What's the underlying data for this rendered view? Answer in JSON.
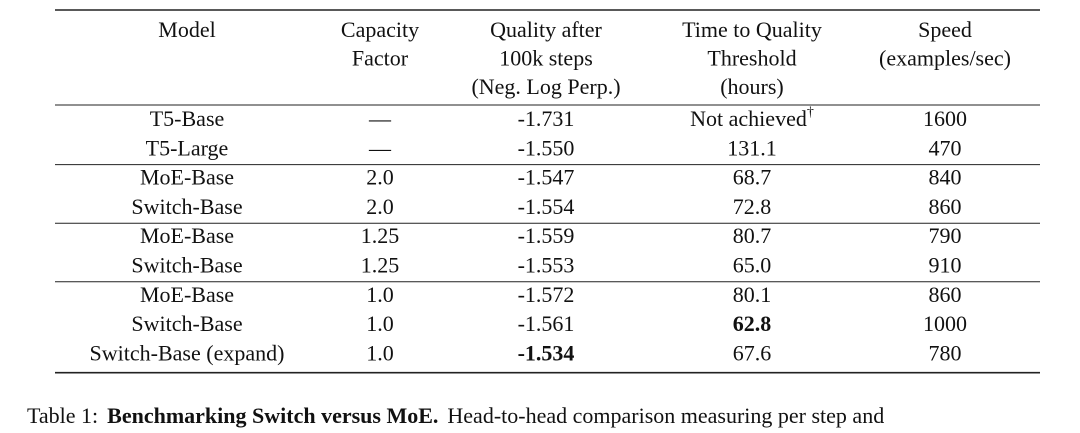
{
  "table": {
    "header": [
      [
        "Model"
      ],
      [
        "Capacity",
        "Factor"
      ],
      [
        "Quality after",
        "100k steps",
        "(Neg. Log Perp.)"
      ],
      [
        "Time to Quality",
        "Threshold",
        "(hours)"
      ],
      [
        "Speed",
        "(examples/sec)"
      ]
    ],
    "groups": [
      {
        "rows": [
          [
            {
              "text": "T5-Base"
            },
            {
              "text": "—"
            },
            {
              "text": "-1.731"
            },
            {
              "text": "Not achieved",
              "sup": "†"
            },
            {
              "text": "1600"
            }
          ],
          [
            {
              "text": "T5-Large"
            },
            {
              "text": "—"
            },
            {
              "text": "-1.550"
            },
            {
              "text": "131.1"
            },
            {
              "text": "470"
            }
          ]
        ]
      },
      {
        "rows": [
          [
            {
              "text": "MoE-Base"
            },
            {
              "text": "2.0"
            },
            {
              "text": "-1.547"
            },
            {
              "text": "68.7"
            },
            {
              "text": "840"
            }
          ],
          [
            {
              "text": "Switch-Base"
            },
            {
              "text": "2.0"
            },
            {
              "text": "-1.554"
            },
            {
              "text": "72.8"
            },
            {
              "text": "860"
            }
          ]
        ]
      },
      {
        "rows": [
          [
            {
              "text": "MoE-Base"
            },
            {
              "text": "1.25"
            },
            {
              "text": "-1.559"
            },
            {
              "text": "80.7"
            },
            {
              "text": "790"
            }
          ],
          [
            {
              "text": "Switch-Base"
            },
            {
              "text": "1.25"
            },
            {
              "text": "-1.553"
            },
            {
              "text": "65.0"
            },
            {
              "text": "910"
            }
          ]
        ]
      },
      {
        "rows": [
          [
            {
              "text": "MoE-Base"
            },
            {
              "text": "1.0"
            },
            {
              "text": "-1.572"
            },
            {
              "text": "80.1"
            },
            {
              "text": "860"
            }
          ],
          [
            {
              "text": "Switch-Base"
            },
            {
              "text": "1.0"
            },
            {
              "text": "-1.561"
            },
            {
              "text": "62.8",
              "bold": true
            },
            {
              "text": "1000"
            }
          ],
          [
            {
              "text": "Switch-Base (expand)"
            },
            {
              "text": "1.0"
            },
            {
              "text": "-1.534",
              "bold": true
            },
            {
              "text": "67.6"
            },
            {
              "text": "780"
            }
          ]
        ]
      }
    ]
  },
  "caption": {
    "label": "Table 1:",
    "title": "Benchmarking Switch versus MoE.",
    "text": "Head-to-head comparison measuring per step and"
  }
}
